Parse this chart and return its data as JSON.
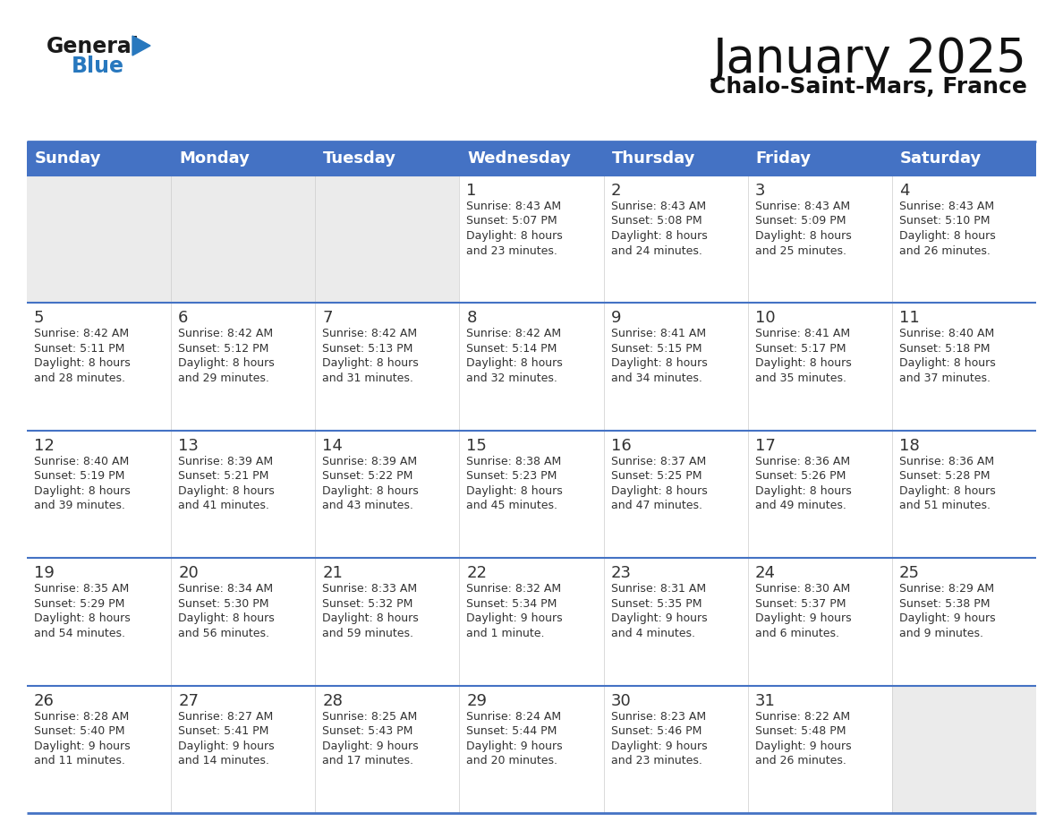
{
  "title": "January 2025",
  "subtitle": "Chalo-Saint-Mars, France",
  "header_bg": "#4472C4",
  "header_text": "#FFFFFF",
  "weekdays": [
    "Sunday",
    "Monday",
    "Tuesday",
    "Wednesday",
    "Thursday",
    "Friday",
    "Saturday"
  ],
  "empty_cell_bg": "#EBEBEB",
  "row_bg": "#FFFFFF",
  "border_color": "#4472C4",
  "thin_border_color": "#4472C4",
  "day_number_color": "#333333",
  "info_color": "#333333",
  "calendar": [
    [
      {
        "day": "",
        "info": ""
      },
      {
        "day": "",
        "info": ""
      },
      {
        "day": "",
        "info": ""
      },
      {
        "day": "1",
        "info": "Sunrise: 8:43 AM\nSunset: 5:07 PM\nDaylight: 8 hours\nand 23 minutes."
      },
      {
        "day": "2",
        "info": "Sunrise: 8:43 AM\nSunset: 5:08 PM\nDaylight: 8 hours\nand 24 minutes."
      },
      {
        "day": "3",
        "info": "Sunrise: 8:43 AM\nSunset: 5:09 PM\nDaylight: 8 hours\nand 25 minutes."
      },
      {
        "day": "4",
        "info": "Sunrise: 8:43 AM\nSunset: 5:10 PM\nDaylight: 8 hours\nand 26 minutes."
      }
    ],
    [
      {
        "day": "5",
        "info": "Sunrise: 8:42 AM\nSunset: 5:11 PM\nDaylight: 8 hours\nand 28 minutes."
      },
      {
        "day": "6",
        "info": "Sunrise: 8:42 AM\nSunset: 5:12 PM\nDaylight: 8 hours\nand 29 minutes."
      },
      {
        "day": "7",
        "info": "Sunrise: 8:42 AM\nSunset: 5:13 PM\nDaylight: 8 hours\nand 31 minutes."
      },
      {
        "day": "8",
        "info": "Sunrise: 8:42 AM\nSunset: 5:14 PM\nDaylight: 8 hours\nand 32 minutes."
      },
      {
        "day": "9",
        "info": "Sunrise: 8:41 AM\nSunset: 5:15 PM\nDaylight: 8 hours\nand 34 minutes."
      },
      {
        "day": "10",
        "info": "Sunrise: 8:41 AM\nSunset: 5:17 PM\nDaylight: 8 hours\nand 35 minutes."
      },
      {
        "day": "11",
        "info": "Sunrise: 8:40 AM\nSunset: 5:18 PM\nDaylight: 8 hours\nand 37 minutes."
      }
    ],
    [
      {
        "day": "12",
        "info": "Sunrise: 8:40 AM\nSunset: 5:19 PM\nDaylight: 8 hours\nand 39 minutes."
      },
      {
        "day": "13",
        "info": "Sunrise: 8:39 AM\nSunset: 5:21 PM\nDaylight: 8 hours\nand 41 minutes."
      },
      {
        "day": "14",
        "info": "Sunrise: 8:39 AM\nSunset: 5:22 PM\nDaylight: 8 hours\nand 43 minutes."
      },
      {
        "day": "15",
        "info": "Sunrise: 8:38 AM\nSunset: 5:23 PM\nDaylight: 8 hours\nand 45 minutes."
      },
      {
        "day": "16",
        "info": "Sunrise: 8:37 AM\nSunset: 5:25 PM\nDaylight: 8 hours\nand 47 minutes."
      },
      {
        "day": "17",
        "info": "Sunrise: 8:36 AM\nSunset: 5:26 PM\nDaylight: 8 hours\nand 49 minutes."
      },
      {
        "day": "18",
        "info": "Sunrise: 8:36 AM\nSunset: 5:28 PM\nDaylight: 8 hours\nand 51 minutes."
      }
    ],
    [
      {
        "day": "19",
        "info": "Sunrise: 8:35 AM\nSunset: 5:29 PM\nDaylight: 8 hours\nand 54 minutes."
      },
      {
        "day": "20",
        "info": "Sunrise: 8:34 AM\nSunset: 5:30 PM\nDaylight: 8 hours\nand 56 minutes."
      },
      {
        "day": "21",
        "info": "Sunrise: 8:33 AM\nSunset: 5:32 PM\nDaylight: 8 hours\nand 59 minutes."
      },
      {
        "day": "22",
        "info": "Sunrise: 8:32 AM\nSunset: 5:34 PM\nDaylight: 9 hours\nand 1 minute."
      },
      {
        "day": "23",
        "info": "Sunrise: 8:31 AM\nSunset: 5:35 PM\nDaylight: 9 hours\nand 4 minutes."
      },
      {
        "day": "24",
        "info": "Sunrise: 8:30 AM\nSunset: 5:37 PM\nDaylight: 9 hours\nand 6 minutes."
      },
      {
        "day": "25",
        "info": "Sunrise: 8:29 AM\nSunset: 5:38 PM\nDaylight: 9 hours\nand 9 minutes."
      }
    ],
    [
      {
        "day": "26",
        "info": "Sunrise: 8:28 AM\nSunset: 5:40 PM\nDaylight: 9 hours\nand 11 minutes."
      },
      {
        "day": "27",
        "info": "Sunrise: 8:27 AM\nSunset: 5:41 PM\nDaylight: 9 hours\nand 14 minutes."
      },
      {
        "day": "28",
        "info": "Sunrise: 8:25 AM\nSunset: 5:43 PM\nDaylight: 9 hours\nand 17 minutes."
      },
      {
        "day": "29",
        "info": "Sunrise: 8:24 AM\nSunset: 5:44 PM\nDaylight: 9 hours\nand 20 minutes."
      },
      {
        "day": "30",
        "info": "Sunrise: 8:23 AM\nSunset: 5:46 PM\nDaylight: 9 hours\nand 23 minutes."
      },
      {
        "day": "31",
        "info": "Sunrise: 8:22 AM\nSunset: 5:48 PM\nDaylight: 9 hours\nand 26 minutes."
      },
      {
        "day": "",
        "info": ""
      }
    ]
  ],
  "logo_general_color": "#1a1a1a",
  "logo_blue_color": "#2878BE",
  "logo_triangle_color": "#2878BE",
  "title_fontsize": 38,
  "subtitle_fontsize": 18,
  "header_fontsize": 13,
  "day_num_fontsize": 13,
  "info_fontsize": 9
}
